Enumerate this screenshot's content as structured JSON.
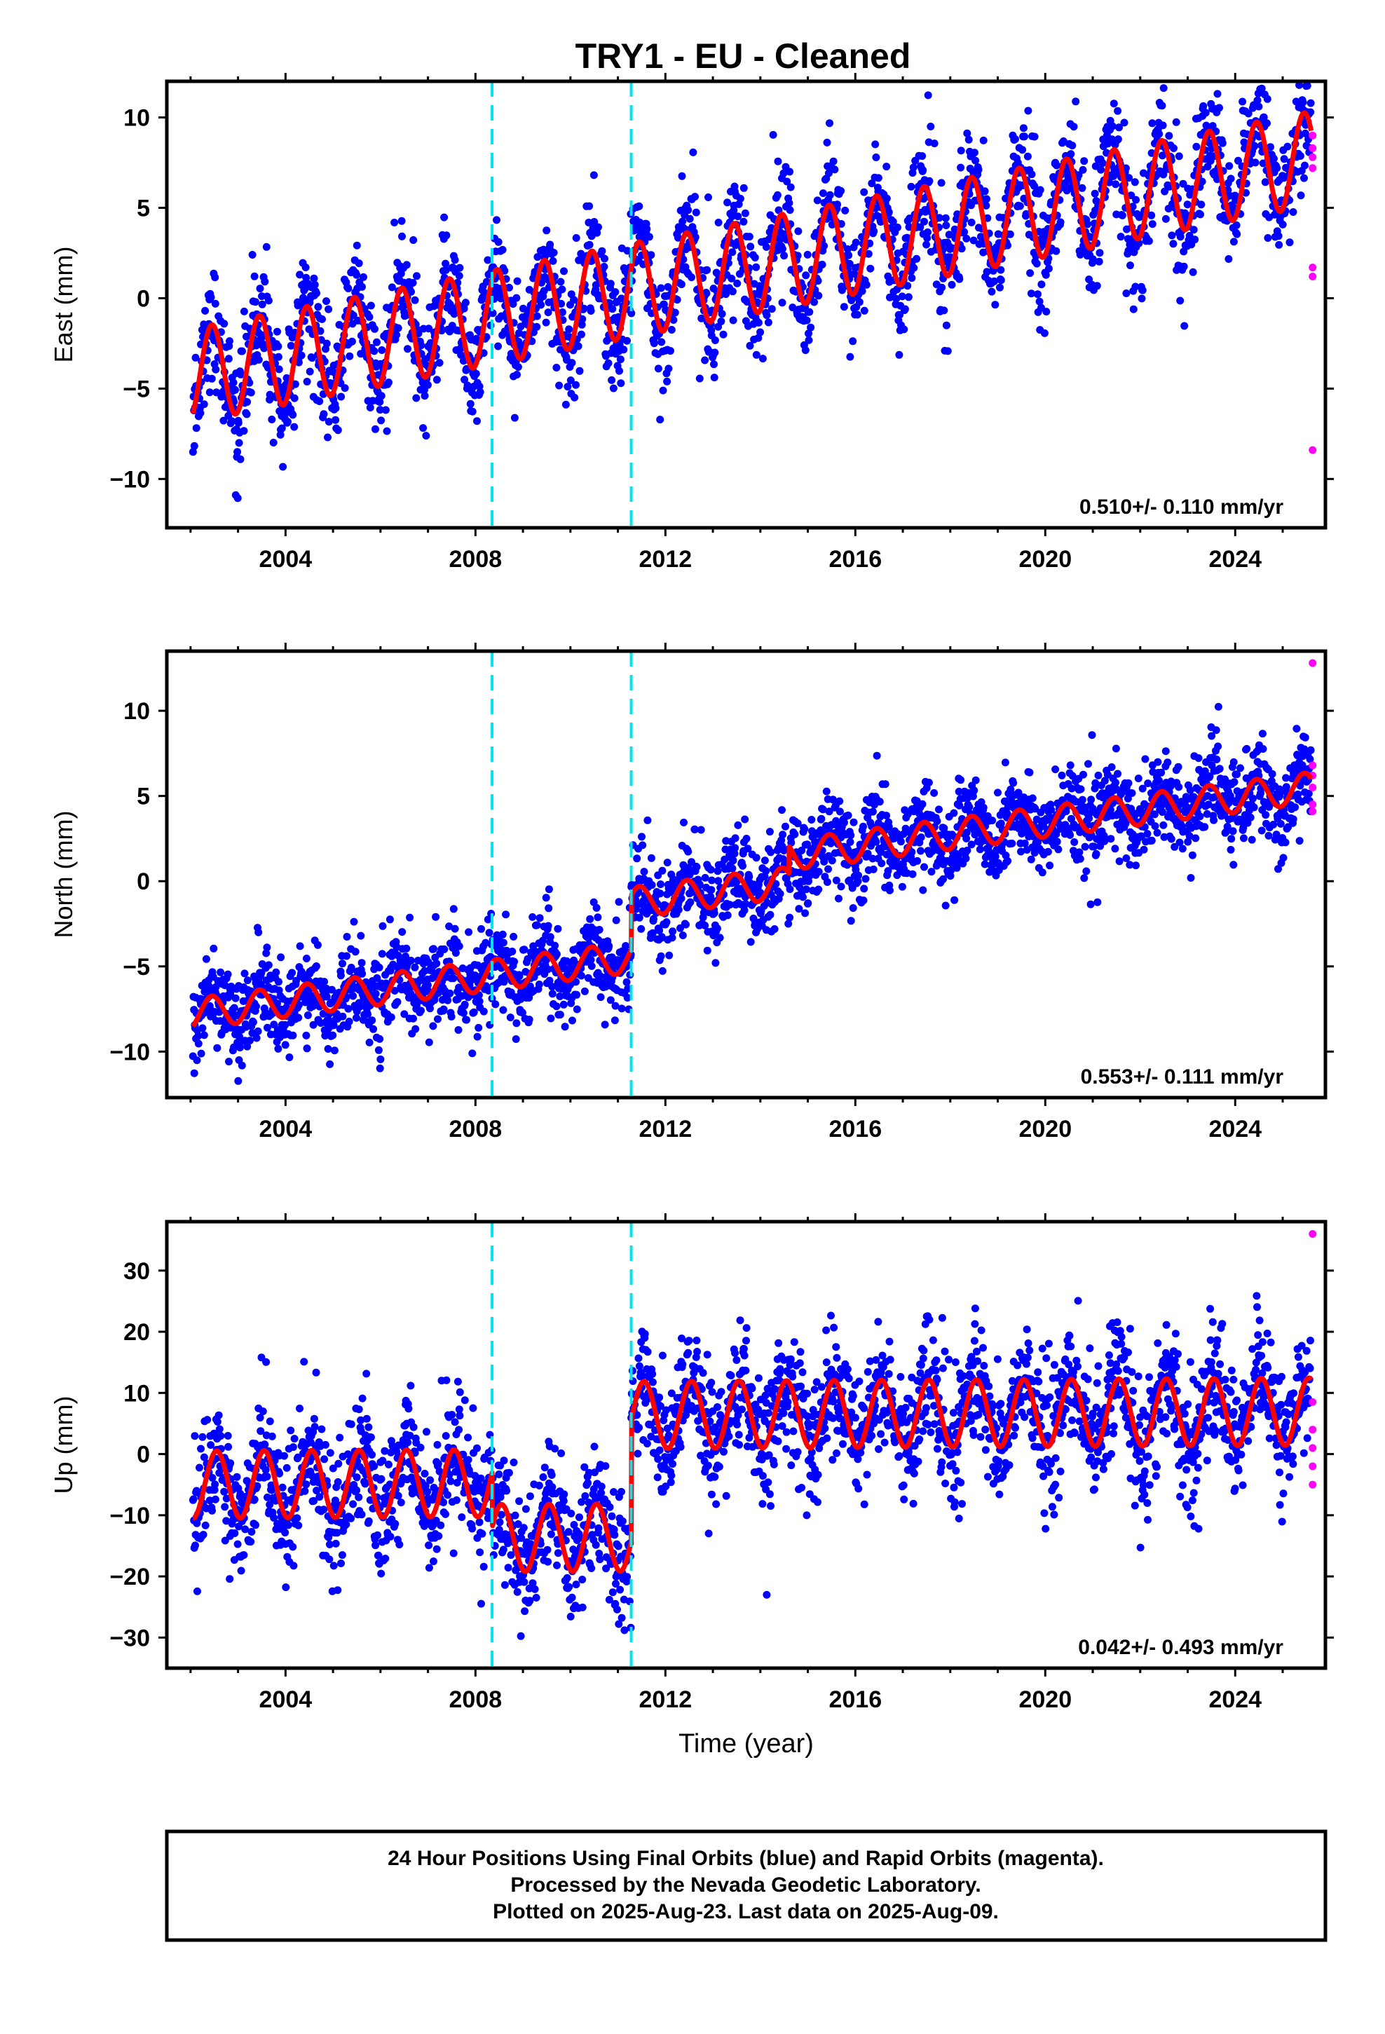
{
  "title": "TRY1  - EU - Cleaned",
  "footer": {
    "line1": "24 Hour Positions Using Final Orbits (blue) and Rapid Orbits (magenta).",
    "line2": "Processed by the Nevada Geodetic Laboratory.",
    "line3": "Plotted on 2025-Aug-23. Last data on 2025-Aug-09."
  },
  "colors": {
    "final_orbits": "#0000ff",
    "rapid_orbits": "#ff00ff",
    "model": "#ff0000",
    "steps": "#00e5ee"
  },
  "chart_data": [
    {
      "type": "scatter",
      "ylabel": "East (mm)",
      "xlabel": "",
      "xlim": [
        2001.5,
        2025.9
      ],
      "ylim": [
        -12.7,
        12.0
      ],
      "x_ticks": [
        2004,
        2008,
        2012,
        2016,
        2020,
        2024
      ],
      "y_ticks": [
        10,
        5,
        0,
        -5,
        -10
      ],
      "y_tick_labels": [
        "10",
        "5",
        "0",
        "−5",
        "−10"
      ],
      "steps": [
        2008.35,
        2011.28
      ],
      "rate": "0.510+/- 0.110 mm/yr",
      "model": {
        "t0": 2002.0,
        "offset": -4.3,
        "rate_mm_per_yr": 0.51,
        "annual_amplitude": 2.6,
        "annual_phase_year": 0.45,
        "step_offsets": [
          0.0,
          0.0
        ],
        "scatter_sigma": 1.6,
        "data_start": 2002.05,
        "data_end": 2025.6
      },
      "rapid_values": [
        9.0,
        8.3,
        7.8,
        7.2,
        1.7,
        1.2,
        -8.4
      ]
    },
    {
      "type": "scatter",
      "ylabel": "North (mm)",
      "xlabel": "",
      "xlim": [
        2001.5,
        2025.9
      ],
      "ylim": [
        -12.7,
        13.5
      ],
      "x_ticks": [
        2004,
        2008,
        2012,
        2016,
        2020,
        2024
      ],
      "y_ticks": [
        10,
        5,
        0,
        -5,
        -10
      ],
      "y_tick_labels": [
        "10",
        "5",
        "0",
        "−5",
        "−10"
      ],
      "steps": [
        2008.35,
        2011.28
      ],
      "rate": "0.553+/- 0.111 mm/yr",
      "model": {
        "t0": 2002.0,
        "offset": -7.8,
        "rate_mm_per_yr": 0.36,
        "annual_amplitude": 0.9,
        "annual_phase_year": 0.45,
        "step_offsets": [
          0.0,
          3.2
        ],
        "extra_step": {
          "year": 2014.6,
          "offset": 1.6
        },
        "scatter_sigma": 1.3,
        "data_start": 2002.05,
        "data_end": 2025.6
      },
      "rapid_values": [
        12.8,
        6.8,
        6.2,
        5.5,
        4.5,
        4.1
      ]
    },
    {
      "type": "scatter",
      "ylabel": "Up (mm)",
      "xlabel": "Time (year)",
      "xlim": [
        2001.5,
        2025.9
      ],
      "ylim": [
        -35.0,
        38.0
      ],
      "x_ticks": [
        2004,
        2008,
        2012,
        2016,
        2020,
        2024
      ],
      "y_ticks": [
        30,
        20,
        10,
        0,
        -10,
        -20,
        -30
      ],
      "y_tick_labels": [
        "30",
        "20",
        "10",
        "0",
        "−10",
        "−20",
        "−30"
      ],
      "steps": [
        2008.35,
        2011.28
      ],
      "rate": "0.042+/- 0.493 mm/yr",
      "model": {
        "t0": 2002.0,
        "offset": -5.0,
        "rate_mm_per_yr": 0.04,
        "annual_amplitude": 5.5,
        "annual_phase_year": 0.55,
        "step_offsets": [
          -9.0,
          20.0
        ],
        "scatter_sigma": 5.0,
        "data_start": 2002.05,
        "data_end": 2025.6
      },
      "rapid_values": [
        36.0,
        8.5,
        4.0,
        1.0,
        -2.0,
        -5.0
      ]
    }
  ]
}
